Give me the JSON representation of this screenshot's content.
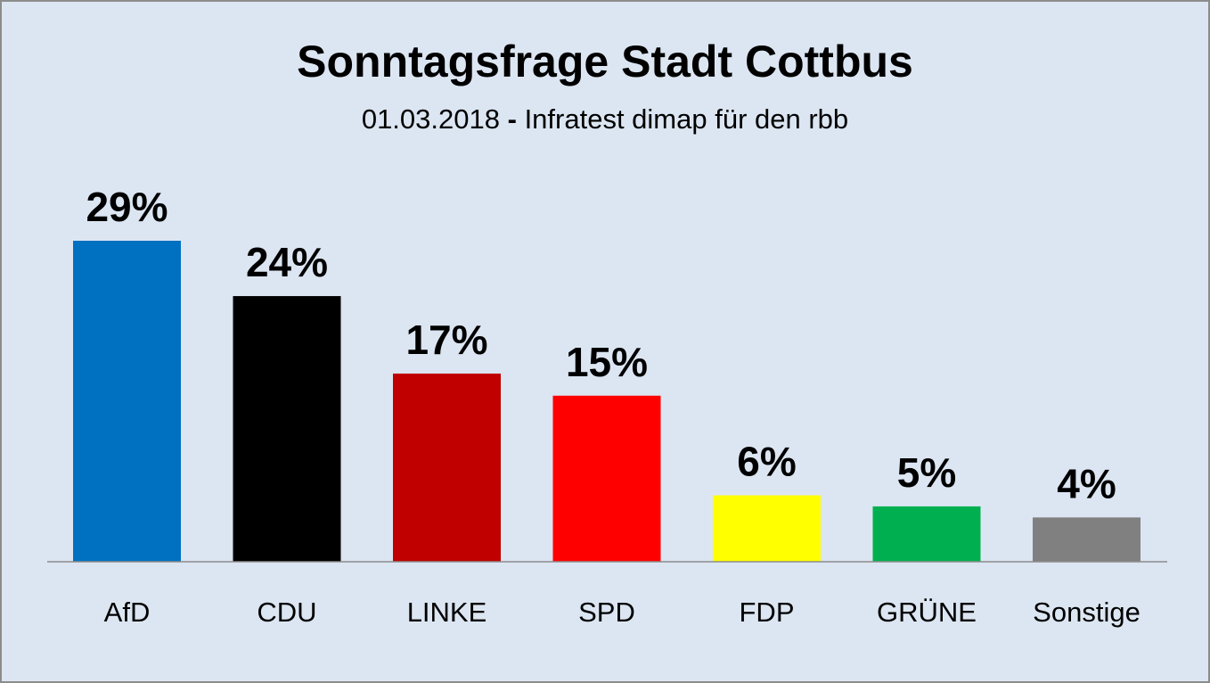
{
  "header": {
    "title": "Sonntagsfrage Stadt Cottbus",
    "subtitle_date": "01.03.2018",
    "subtitle_sep": "-",
    "subtitle_source": "Infratest dimap für den rbb"
  },
  "chart_data": {
    "type": "bar",
    "title": "Sonntagsfrage Stadt Cottbus",
    "subtitle": "01.03.2018 - Infratest dimap für den rbb",
    "xlabel": "",
    "ylabel": "",
    "unit": "%",
    "categories": [
      "AfD",
      "CDU",
      "LINKE",
      "SPD",
      "FDP",
      "GRÜNE",
      "Sonstige"
    ],
    "values": [
      29,
      24,
      17,
      15,
      6,
      5,
      4
    ],
    "value_labels": [
      "29%",
      "24%",
      "17%",
      "15%",
      "6%",
      "5%",
      "4%"
    ],
    "colors": [
      "#0070c0",
      "#000000",
      "#c00000",
      "#ff0000",
      "#ffff00",
      "#00b050",
      "#808080"
    ],
    "ylim": [
      0,
      29
    ],
    "grid": false,
    "legend": "none",
    "background": "#dce6f2"
  }
}
